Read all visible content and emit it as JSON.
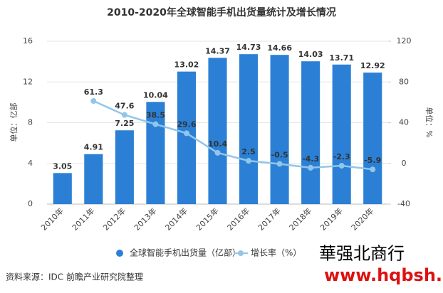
{
  "chart_data": {
    "type": "bar",
    "title": "2010-2020年全球智能手机出货量统计及增长情况",
    "categories": [
      "2010年",
      "2011年",
      "2012年",
      "2013年",
      "2014年",
      "2015年",
      "2016年",
      "2017年",
      "2018年",
      "2019年",
      "2020年"
    ],
    "series": [
      {
        "name": "全球智能手机出货量（亿部）",
        "color": "#2b80d5",
        "type": "bar",
        "values": [
          3.05,
          4.91,
          7.25,
          10.04,
          13.02,
          14.37,
          14.73,
          14.66,
          14.03,
          13.71,
          12.92
        ]
      },
      {
        "name": "增长率（%）",
        "color": "#92c5ea",
        "type": "line",
        "axis": "y2",
        "values": [
          null,
          61.3,
          47.6,
          38.5,
          29.6,
          10.4,
          2.5,
          -0.5,
          -4.3,
          -2.3,
          -5.9
        ]
      }
    ],
    "ylabel": "单位：亿部",
    "y2label": "单位：%",
    "ylim": [
      0,
      16
    ],
    "yticks": [
      0,
      4,
      8,
      12,
      16
    ],
    "y2lim": [
      -40,
      120
    ],
    "y2ticks": [
      -40,
      0,
      40,
      80,
      120
    ],
    "source": "资料来源：IDC 前瞻产业研究院整理",
    "annotations": [
      "華强北商行",
      "www.hqbsh.com"
    ]
  }
}
